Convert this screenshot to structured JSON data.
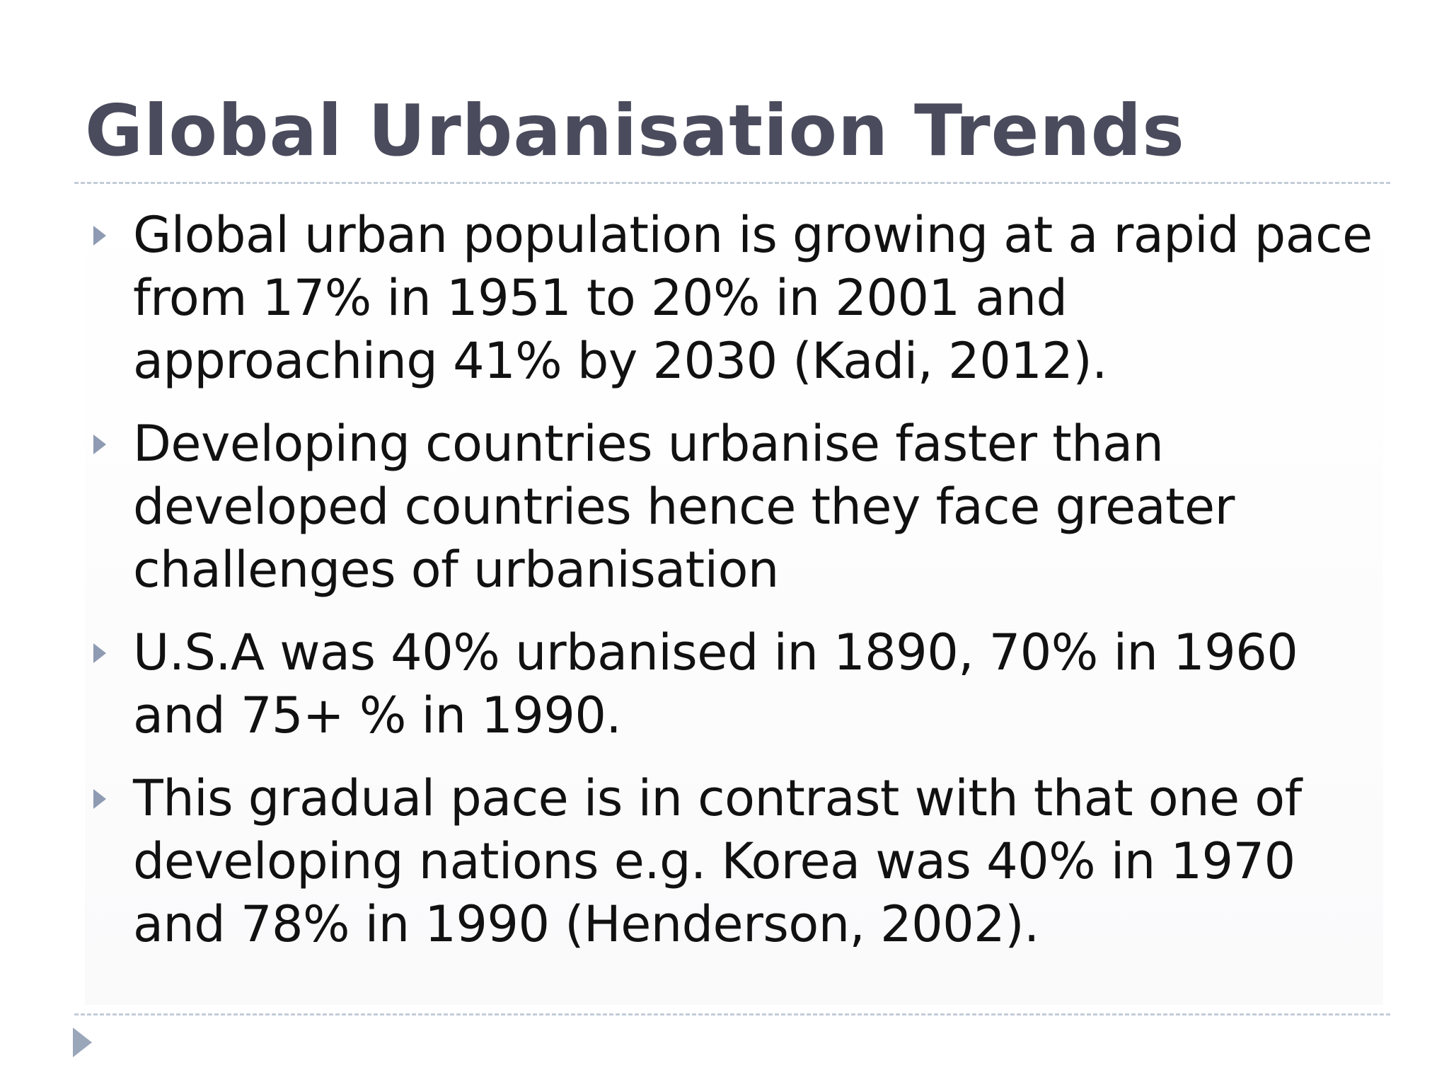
{
  "slide": {
    "title": "Global Urbanisation Trends",
    "bullets": [
      {
        "text": "Global urban population is growing at a rapid pace from 17% in 1951 to 20% in 2001 and approaching 41% by 2030 (Kadi, 2012)."
      },
      {
        "text": "Developing countries urbanise faster than developed countries hence they face greater challenges of urbanisation"
      },
      {
        "text": "U.S.A was 40% urbanised in 1890, 70% in 1960 and 75+ % in 1990."
      },
      {
        "text": "This gradual pace is in contrast with that one of developing nations e.g. Korea was 40% in 1970 and 78% in 1990 (Henderson, 2002)."
      }
    ],
    "colors": {
      "title": "#4a4b5c",
      "text": "#111111",
      "bullet": "#8e9bb2",
      "rule": "#c4ccd8"
    },
    "icons": {
      "bullet": "triangle-bullet-icon",
      "corner": "triangle-arrow-icon"
    }
  }
}
